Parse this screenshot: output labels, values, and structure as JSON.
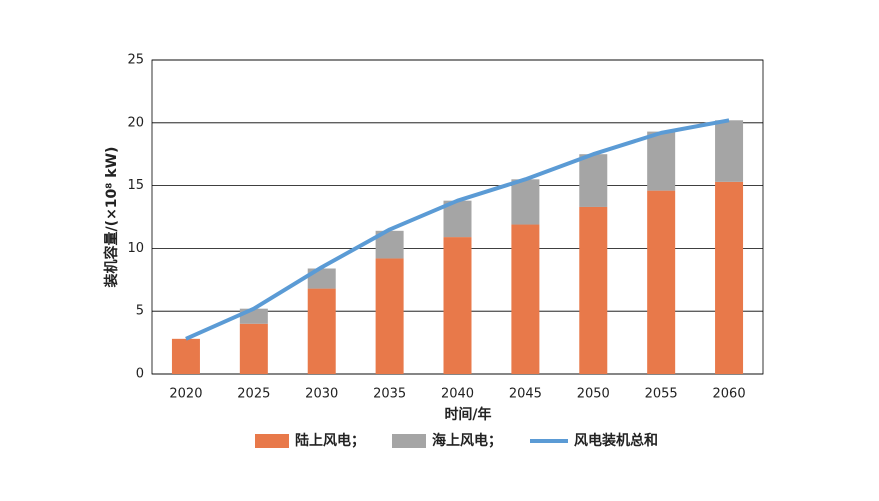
{
  "chart_data": {
    "type": "bar",
    "stacked": true,
    "x_label": "时间/年",
    "y_label": "装机容量/(×10⁸ kW)",
    "categories": [
      "2020",
      "2025",
      "2030",
      "2035",
      "2040",
      "2045",
      "2050",
      "2055",
      "2060"
    ],
    "series": [
      {
        "name": "陆上风电；",
        "type": "bar",
        "color": "#e8794a",
        "values": [
          2.8,
          4.0,
          6.8,
          9.2,
          10.9,
          11.9,
          13.3,
          14.6,
          15.3
        ]
      },
      {
        "name": "海上风电；",
        "type": "bar",
        "color": "#a5a5a5",
        "values": [
          0,
          1.2,
          1.6,
          2.2,
          2.9,
          3.6,
          4.2,
          4.7,
          4.9
        ]
      },
      {
        "name": "风电装机总和",
        "type": "line",
        "color": "#5b9bd5",
        "values": [
          2.8,
          5.2,
          8.5,
          11.5,
          13.8,
          15.5,
          17.5,
          19.2,
          20.2
        ]
      }
    ],
    "ylim": [
      0,
      25
    ],
    "yticks": [
      0,
      5,
      10,
      15,
      20,
      25
    ],
    "grid": true
  }
}
